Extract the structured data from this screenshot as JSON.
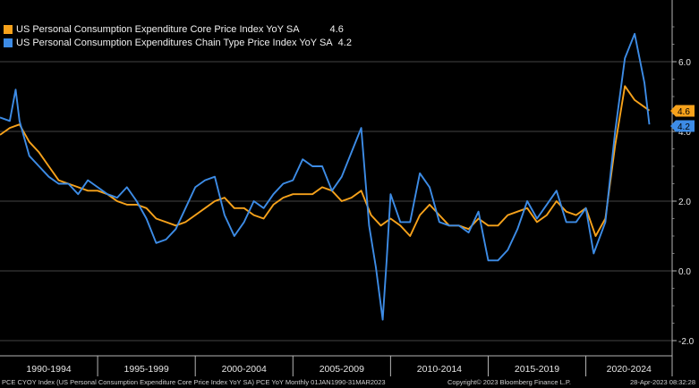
{
  "chart_data": {
    "type": "line",
    "legend_position": "top-left",
    "grid": true,
    "ylim": [
      -2.0,
      7.0
    ],
    "x_range": [
      "1990-01",
      "2023-03"
    ],
    "yticks": [
      -2.0,
      0.0,
      2.0,
      4.0,
      6.0
    ],
    "ytick_labels": [
      "-2.0",
      "0.0",
      "2.0",
      "4.0",
      "6.0"
    ],
    "period_labels": [
      "1990-1994",
      "1995-1999",
      "2000-2004",
      "2005-2009",
      "2010-2014",
      "2015-2019",
      "2020-2024"
    ],
    "series": [
      {
        "name": "US Personal Consumption Expenditure Core Price Index YoY SA",
        "last_value": "4.6",
        "color": "#f7a21b",
        "points": [
          [
            1990.0,
            3.9
          ],
          [
            1990.5,
            4.1
          ],
          [
            1991.0,
            4.2
          ],
          [
            1991.5,
            3.7
          ],
          [
            1992.0,
            3.4
          ],
          [
            1992.5,
            3.0
          ],
          [
            1993.0,
            2.6
          ],
          [
            1993.5,
            2.5
          ],
          [
            1994.0,
            2.4
          ],
          [
            1994.5,
            2.3
          ],
          [
            1995.0,
            2.3
          ],
          [
            1995.5,
            2.2
          ],
          [
            1996.0,
            2.0
          ],
          [
            1996.5,
            1.9
          ],
          [
            1997.0,
            1.9
          ],
          [
            1997.5,
            1.8
          ],
          [
            1998.0,
            1.5
          ],
          [
            1998.5,
            1.4
          ],
          [
            1999.0,
            1.3
          ],
          [
            1999.5,
            1.4
          ],
          [
            2000.0,
            1.6
          ],
          [
            2000.5,
            1.8
          ],
          [
            2001.0,
            2.0
          ],
          [
            2001.5,
            2.1
          ],
          [
            2002.0,
            1.8
          ],
          [
            2002.5,
            1.8
          ],
          [
            2003.0,
            1.6
          ],
          [
            2003.5,
            1.5
          ],
          [
            2004.0,
            1.9
          ],
          [
            2004.5,
            2.1
          ],
          [
            2005.0,
            2.2
          ],
          [
            2005.5,
            2.2
          ],
          [
            2006.0,
            2.2
          ],
          [
            2006.5,
            2.4
          ],
          [
            2007.0,
            2.3
          ],
          [
            2007.5,
            2.0
          ],
          [
            2008.0,
            2.1
          ],
          [
            2008.5,
            2.3
          ],
          [
            2009.0,
            1.6
          ],
          [
            2009.5,
            1.3
          ],
          [
            2010.0,
            1.5
          ],
          [
            2010.5,
            1.3
          ],
          [
            2011.0,
            1.0
          ],
          [
            2011.5,
            1.6
          ],
          [
            2012.0,
            1.9
          ],
          [
            2012.5,
            1.6
          ],
          [
            2013.0,
            1.3
          ],
          [
            2013.5,
            1.3
          ],
          [
            2014.0,
            1.2
          ],
          [
            2014.5,
            1.5
          ],
          [
            2015.0,
            1.3
          ],
          [
            2015.5,
            1.3
          ],
          [
            2016.0,
            1.6
          ],
          [
            2016.5,
            1.7
          ],
          [
            2017.0,
            1.8
          ],
          [
            2017.5,
            1.4
          ],
          [
            2018.0,
            1.6
          ],
          [
            2018.5,
            2.0
          ],
          [
            2019.0,
            1.7
          ],
          [
            2019.5,
            1.6
          ],
          [
            2020.0,
            1.8
          ],
          [
            2020.5,
            1.0
          ],
          [
            2021.0,
            1.5
          ],
          [
            2021.5,
            3.6
          ],
          [
            2022.0,
            5.3
          ],
          [
            2022.5,
            4.9
          ],
          [
            2023.0,
            4.7
          ],
          [
            2023.25,
            4.6
          ]
        ]
      },
      {
        "name": "US Personal Consumption Expenditures Chain Type Price Index YoY SA",
        "last_value": "4.2",
        "color": "#3d8ce6",
        "points": [
          [
            1990.0,
            4.4
          ],
          [
            1990.5,
            4.3
          ],
          [
            1990.8,
            5.2
          ],
          [
            1991.0,
            4.3
          ],
          [
            1991.5,
            3.3
          ],
          [
            1992.0,
            3.0
          ],
          [
            1992.5,
            2.7
          ],
          [
            1993.0,
            2.5
          ],
          [
            1993.5,
            2.5
          ],
          [
            1994.0,
            2.2
          ],
          [
            1994.5,
            2.6
          ],
          [
            1995.0,
            2.4
          ],
          [
            1995.5,
            2.2
          ],
          [
            1996.0,
            2.1
          ],
          [
            1996.5,
            2.4
          ],
          [
            1997.0,
            2.0
          ],
          [
            1997.5,
            1.5
          ],
          [
            1998.0,
            0.8
          ],
          [
            1998.5,
            0.9
          ],
          [
            1999.0,
            1.2
          ],
          [
            1999.5,
            1.8
          ],
          [
            2000.0,
            2.4
          ],
          [
            2000.5,
            2.6
          ],
          [
            2001.0,
            2.7
          ],
          [
            2001.5,
            1.6
          ],
          [
            2002.0,
            1.0
          ],
          [
            2002.5,
            1.4
          ],
          [
            2003.0,
            2.0
          ],
          [
            2003.5,
            1.8
          ],
          [
            2004.0,
            2.2
          ],
          [
            2004.5,
            2.5
          ],
          [
            2005.0,
            2.6
          ],
          [
            2005.5,
            3.2
          ],
          [
            2006.0,
            3.0
          ],
          [
            2006.5,
            3.0
          ],
          [
            2007.0,
            2.3
          ],
          [
            2007.5,
            2.7
          ],
          [
            2008.0,
            3.4
          ],
          [
            2008.5,
            4.1
          ],
          [
            2008.9,
            1.3
          ],
          [
            2009.25,
            0.1
          ],
          [
            2009.6,
            -1.4
          ],
          [
            2009.8,
            0.3
          ],
          [
            2010.0,
            2.2
          ],
          [
            2010.5,
            1.4
          ],
          [
            2011.0,
            1.4
          ],
          [
            2011.5,
            2.8
          ],
          [
            2012.0,
            2.4
          ],
          [
            2012.5,
            1.4
          ],
          [
            2013.0,
            1.3
          ],
          [
            2013.5,
            1.3
          ],
          [
            2014.0,
            1.1
          ],
          [
            2014.5,
            1.7
          ],
          [
            2015.0,
            0.3
          ],
          [
            2015.5,
            0.3
          ],
          [
            2016.0,
            0.6
          ],
          [
            2016.5,
            1.2
          ],
          [
            2017.0,
            2.0
          ],
          [
            2017.5,
            1.5
          ],
          [
            2018.0,
            1.9
          ],
          [
            2018.5,
            2.3
          ],
          [
            2019.0,
            1.4
          ],
          [
            2019.5,
            1.4
          ],
          [
            2020.0,
            1.8
          ],
          [
            2020.4,
            0.5
          ],
          [
            2021.0,
            1.4
          ],
          [
            2021.5,
            4.0
          ],
          [
            2022.0,
            6.1
          ],
          [
            2022.5,
            6.8
          ],
          [
            2023.0,
            5.4
          ],
          [
            2023.25,
            4.2
          ]
        ]
      }
    ]
  },
  "footer": {
    "left": "PCE CYOY Index (US Personal Consumption Expenditure Core Price Index YoY SA) PCE YoY  Monthly 01JAN1990-31MAR2023",
    "center": "Copyright© 2023 Bloomberg Finance L.P.",
    "right": "28-Apr-2023 08:32:28"
  }
}
